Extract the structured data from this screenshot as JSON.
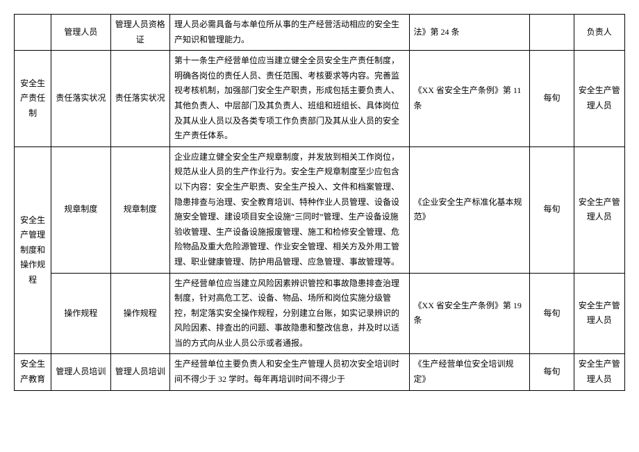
{
  "rows": [
    {
      "c1": "",
      "c2": "管理人员",
      "c3": "管理人员资格证",
      "c4": "理人员必需具备与本单位所从事的生产经营活动相应的安全生产知识和管理能力。",
      "c5": "法》第 24 条",
      "c6": "",
      "c7": "负责人"
    },
    {
      "c1": "安全生产责任制",
      "c2": "责任落实状况",
      "c3": "责任落实状况",
      "c4": "第十一条生产经营单位应当建立健全全员安全生产责任制度，明确各岗位的责任人员、责任范围、考核要求等内容。完善监视考核机制，加强部门安全生产职责，形成包括主要负责人、其他负责人、中层部门及其负责人、班组和班组长、具体岗位及其从业人员以及各类专项工作负责部门及其从业人员的安全生产责任体系。",
      "c5": "《XX 省安全生产条例》第 11 条",
      "c6": "每旬",
      "c7": "安全生产管理人员"
    },
    {
      "c1": "安全生产管理制度和操作规程",
      "c2": "规章制度",
      "c3": "规章制度",
      "c4": "企业应建立健全安全生产规章制度，并发放到相关工作岗位，规范从业人员的生产作业行为。安全生产规章制度至少应包含以下内容：安全生产职责、安全生产投入、文件和档案管理、隐患排查与治理、安全教育培训、特种作业人员管理、设备设施安全管理、建设项目安全设施“三同时”管理、生产设备设施验收管理、生产设备设施报废管理、施工和检修安全管理、危险物品及重大危险源管理、作业安全管理、相关方及外用工管理、职业健康管理、防护用品管理、应急管理、事故管理等。",
      "c5": "《企业安全生产标准化基本规范》",
      "c6": "每旬",
      "c7": "安全生产管理人员",
      "c1rowspan": 2
    },
    {
      "c2": "操作规程",
      "c3": "操作规程",
      "c4": "生产经营单位应当建立风险因素辨识管控和事故隐患排查治理制度，针对高危工艺、设备、物品、场所和岗位实施分级管控，制定落实安全操作规程，分别建立台账，如实记录辨识的风险因素、排查出的问题、事故隐患和整改信息，并及时以适当的方式向从业人员公示或者通报。",
      "c5": "《XX 省安全生产条例》第 19 条",
      "c6": "每旬",
      "c7": "安全生产管理人员"
    },
    {
      "c1": "安全生产教育",
      "c2": "管理人员培训",
      "c3": "管理人员培训",
      "c4": "生产经营单位主要负责人和安全生产管理人员初次安全培训时间不得少于 32 学时。每年再培训时间不得少于",
      "c5": "《生产经营单位安全培训规定》",
      "c6": "每旬",
      "c7": "安全生产管理人员"
    }
  ]
}
